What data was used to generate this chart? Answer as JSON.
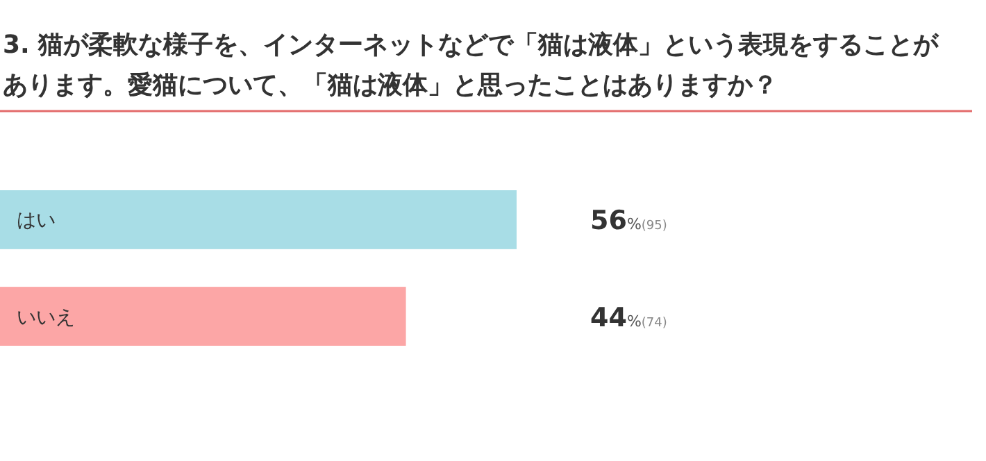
{
  "chart_data": {
    "type": "bar",
    "orientation": "horizontal",
    "title": "3. 猫が柔軟な様子を、インターネットなどで「猫は液体」という表現をすることがあります。愛猫について、「猫は液体」と思ったことはありますか？",
    "categories": [
      "はい",
      "いいえ"
    ],
    "values": [
      56,
      44
    ],
    "colors": [
      "#a8dde6",
      "#fca6a6"
    ],
    "value_labels": [
      "56%(95)",
      "44%(74)"
    ]
  }
}
